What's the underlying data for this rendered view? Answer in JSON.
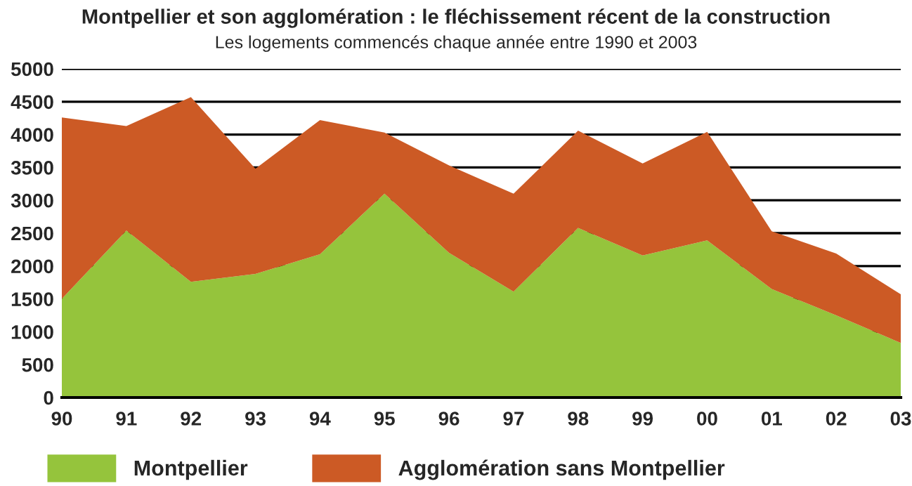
{
  "chart_data": {
    "type": "area",
    "title": "Montpellier et son agglomération : le fléchissement récent de la construction",
    "subtitle": "Les logements commencés chaque année entre 1990 et 2003",
    "categories": [
      "90",
      "91",
      "92",
      "93",
      "94",
      "95",
      "96",
      "97",
      "98",
      "99",
      "00",
      "01",
      "02",
      "03"
    ],
    "stacked": true,
    "series": [
      {
        "name": "Montpellier",
        "color": "#95c43c",
        "values": [
          1500,
          2540,
          1760,
          1880,
          2180,
          3100,
          2200,
          1610,
          2580,
          2160,
          2390,
          1650,
          1250,
          830
        ]
      },
      {
        "name": "Agglomération sans Montpellier",
        "color": "#cc5a25",
        "values": [
          2760,
          1590,
          2810,
          1600,
          2040,
          930,
          1330,
          1490,
          1480,
          1400,
          1650,
          880,
          940,
          740
        ]
      }
    ],
    "ylim": [
      0,
      5000
    ],
    "yticks": [
      0,
      500,
      1000,
      1500,
      2000,
      2500,
      3000,
      3500,
      4000,
      4500,
      5000
    ],
    "grid": "y",
    "legend": "bottom"
  }
}
